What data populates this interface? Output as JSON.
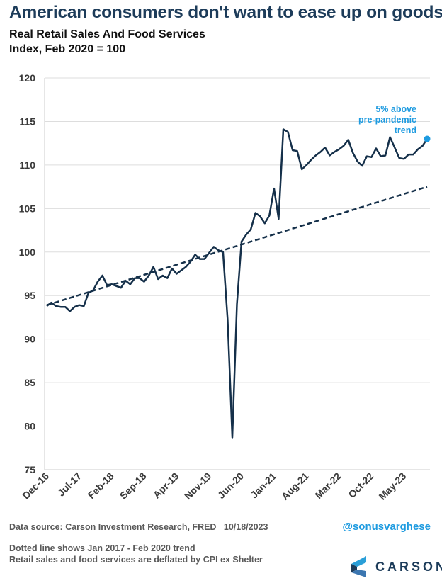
{
  "headline": "American consumers don't want to ease up on goods",
  "chart_data": {
    "type": "line",
    "title": "Real Retail Sales And Food Services",
    "subtitle": "Index, Feb 2020 = 100",
    "ylim": [
      75,
      120
    ],
    "yticks": [
      75,
      80,
      85,
      90,
      95,
      100,
      105,
      110,
      115,
      120
    ],
    "xtick_labels": [
      "Dec-16",
      "Jul-17",
      "Feb-18",
      "Sep-18",
      "Apr-19",
      "Nov-19",
      "Jun-20",
      "Jan-21",
      "Aug-21",
      "Mar-22",
      "Oct-22",
      "May-23"
    ],
    "grid": "horizontal",
    "x_start": "Dec-16",
    "x_end": "Sep-23",
    "series": [
      {
        "color": "#15304a",
        "style": "solid",
        "values": [
          93.8,
          94.2,
          93.8,
          93.7,
          93.7,
          93.2,
          93.7,
          93.9,
          93.8,
          95.3,
          95.6,
          96.6,
          97.3,
          96.2,
          96.3,
          96.1,
          95.9,
          96.7,
          96.3,
          97.0,
          97.0,
          96.6,
          97.3,
          98.3,
          96.9,
          97.3,
          97.0,
          98.1,
          97.5,
          97.9,
          98.3,
          98.9,
          99.7,
          99.2,
          99.2,
          99.9,
          100.6,
          100.2,
          100.0,
          92.2,
          78.7,
          94.0,
          101.2,
          102.0,
          102.6,
          104.5,
          104.1,
          103.3,
          104.2,
          107.3,
          103.8,
          114.1,
          113.8,
          111.7,
          111.6,
          109.5,
          110.0,
          110.6,
          111.1,
          111.5,
          112.0,
          111.1,
          111.5,
          111.8,
          112.2,
          112.9,
          111.4,
          110.4,
          109.9,
          111.0,
          110.9,
          111.9,
          111.0,
          111.1,
          113.2,
          112.0,
          110.8,
          110.7,
          111.2,
          111.2,
          111.8,
          112.2,
          113.0
        ]
      },
      {
        "color": "#15304a",
        "style": "dashed",
        "start": 93.9,
        "end": 107.5
      }
    ],
    "annotation": {
      "lines": [
        "5% above",
        "pre-pandemic",
        "trend"
      ],
      "color": "#1e9be0",
      "value": 113.0
    }
  },
  "footer": {
    "source": "Data source: Carson Investment Research, FRED",
    "date": "10/18/2023",
    "handle": "@sonusvarghese",
    "note1": "Dotted line shows Jan 2017 - Feb 2020 trend",
    "note2": "Retail sales and food services are deflated by CPI ex Shelter"
  },
  "brand": {
    "name": "CARSON",
    "logo_icon": "carson-chevron-logo"
  }
}
